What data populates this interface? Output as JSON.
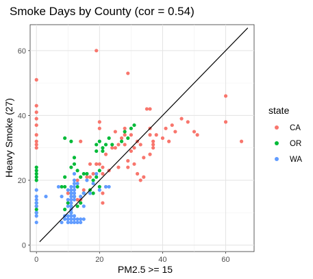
{
  "chart_data": {
    "type": "scatter",
    "title": "Smoke Days by County (cor = 0.54)",
    "xlabel": "PM2.5 >= 15",
    "ylabel": "Heavy Smoke (27)",
    "xlim": [
      -2,
      69
    ],
    "ylim": [
      -2,
      68
    ],
    "x_ticks": [
      0,
      20,
      40,
      60
    ],
    "y_ticks": [
      0,
      20,
      40,
      60
    ],
    "grid": true,
    "legend": {
      "title": "state",
      "position": "right"
    },
    "series": [
      {
        "name": "CA",
        "color": "#F8766D",
        "points": [
          [
            0,
            51
          ],
          [
            0,
            43
          ],
          [
            0,
            41
          ],
          [
            0,
            39
          ],
          [
            0,
            37
          ],
          [
            0,
            34
          ],
          [
            0,
            32
          ],
          [
            0,
            31
          ],
          [
            0,
            30
          ],
          [
            19,
            60
          ],
          [
            29,
            53
          ],
          [
            60,
            46
          ],
          [
            60,
            38
          ],
          [
            65,
            32
          ],
          [
            51,
            34
          ],
          [
            50,
            35
          ],
          [
            48,
            38
          ],
          [
            46,
            39
          ],
          [
            43,
            37
          ],
          [
            44,
            35
          ],
          [
            41,
            36
          ],
          [
            42,
            32
          ],
          [
            40,
            33
          ],
          [
            38,
            34
          ],
          [
            37,
            30
          ],
          [
            37,
            31
          ],
          [
            37,
            32
          ],
          [
            36,
            36
          ],
          [
            35,
            42
          ],
          [
            36,
            42
          ],
          [
            34,
            27
          ],
          [
            33,
            31
          ],
          [
            31,
            30
          ],
          [
            30,
            34
          ],
          [
            30,
            29
          ],
          [
            29,
            26
          ],
          [
            28,
            34
          ],
          [
            29,
            24
          ],
          [
            28,
            31
          ],
          [
            28,
            36
          ],
          [
            27,
            33
          ],
          [
            26,
            31
          ],
          [
            25,
            30
          ],
          [
            24,
            30
          ],
          [
            23,
            23
          ],
          [
            22,
            28
          ],
          [
            21,
            24
          ],
          [
            21,
            22
          ],
          [
            20,
            25
          ],
          [
            19,
            25
          ],
          [
            21,
            16
          ],
          [
            21,
            13
          ],
          [
            20,
            38
          ],
          [
            20,
            36
          ],
          [
            19,
            25
          ],
          [
            17,
            21
          ],
          [
            16,
            21
          ],
          [
            15,
            17
          ],
          [
            14,
            32
          ],
          [
            14,
            14
          ],
          [
            13,
            14
          ],
          [
            12,
            15
          ],
          [
            11,
            13
          ],
          [
            11,
            11
          ],
          [
            10,
            13
          ],
          [
            10,
            16
          ],
          [
            17,
            25
          ],
          [
            18,
            22
          ],
          [
            13,
            20
          ],
          [
            26,
            24
          ],
          [
            31,
            25
          ],
          [
            32,
            22
          ],
          [
            32,
            32
          ],
          [
            33,
            20
          ],
          [
            34,
            21
          ],
          [
            22,
            18
          ],
          [
            25,
            35
          ],
          [
            36,
            34
          ],
          [
            36,
            28
          ]
        ]
      },
      {
        "name": "OR",
        "color": "#00BA38",
        "points": [
          [
            0,
            24
          ],
          [
            0,
            23
          ],
          [
            0,
            22
          ],
          [
            0,
            21
          ],
          [
            0,
            20
          ],
          [
            0,
            13
          ],
          [
            0,
            12
          ],
          [
            0,
            11
          ],
          [
            0,
            10
          ],
          [
            9,
            33
          ],
          [
            9,
            21
          ],
          [
            8,
            18
          ],
          [
            9,
            18
          ],
          [
            9,
            11
          ],
          [
            10,
            13
          ],
          [
            11,
            12
          ],
          [
            11,
            16
          ],
          [
            11,
            10
          ],
          [
            11,
            24
          ],
          [
            11,
            32
          ],
          [
            12,
            27
          ],
          [
            12,
            25
          ],
          [
            12,
            15
          ],
          [
            13,
            23
          ],
          [
            13,
            18
          ],
          [
            14,
            21
          ],
          [
            15,
            22
          ],
          [
            16,
            22
          ],
          [
            17,
            17
          ],
          [
            18,
            20
          ],
          [
            19,
            31
          ],
          [
            19,
            29
          ],
          [
            19,
            21
          ],
          [
            20,
            32
          ],
          [
            20,
            23
          ],
          [
            21,
            30
          ],
          [
            21,
            29
          ],
          [
            22,
            31
          ],
          [
            23,
            33
          ],
          [
            24,
            31
          ],
          [
            27,
            32
          ],
          [
            28,
            35
          ],
          [
            29,
            33
          ],
          [
            30,
            36
          ],
          [
            31,
            37
          ],
          [
            18,
            16
          ],
          [
            20,
            18
          ],
          [
            13,
            12
          ],
          [
            14,
            13
          ],
          [
            15,
            16
          ]
        ]
      },
      {
        "name": "WA",
        "color": "#619CFF",
        "points": [
          [
            0,
            17
          ],
          [
            0,
            15
          ],
          [
            0,
            14
          ],
          [
            0,
            13
          ],
          [
            0,
            12
          ],
          [
            0,
            10
          ],
          [
            0,
            9
          ],
          [
            0,
            7
          ],
          [
            3,
            15
          ],
          [
            7,
            18
          ],
          [
            8,
            15
          ],
          [
            8,
            7
          ],
          [
            9,
            8
          ],
          [
            9,
            9
          ],
          [
            10,
            8
          ],
          [
            10,
            7
          ],
          [
            10,
            9
          ],
          [
            10,
            12
          ],
          [
            10,
            14
          ],
          [
            10,
            17
          ],
          [
            11,
            18
          ],
          [
            11,
            17
          ],
          [
            11,
            16
          ],
          [
            11,
            15
          ],
          [
            11,
            14
          ],
          [
            11,
            13
          ],
          [
            11,
            12
          ],
          [
            11,
            11
          ],
          [
            11,
            10
          ],
          [
            11,
            9
          ],
          [
            11,
            8
          ],
          [
            11,
            7
          ],
          [
            12,
            22
          ],
          [
            12,
            20
          ],
          [
            12,
            19
          ],
          [
            12,
            18
          ],
          [
            12,
            17
          ],
          [
            12,
            16
          ],
          [
            12,
            15
          ],
          [
            12,
            14
          ],
          [
            12,
            9
          ],
          [
            12,
            8
          ],
          [
            12,
            7
          ],
          [
            13,
            19
          ],
          [
            13,
            8
          ],
          [
            13,
            7
          ],
          [
            14,
            15
          ],
          [
            14,
            8
          ],
          [
            14,
            7
          ],
          [
            15,
            16
          ],
          [
            15,
            12
          ],
          [
            15,
            8
          ],
          [
            16,
            20
          ],
          [
            17,
            16
          ],
          [
            18,
            19
          ],
          [
            19,
            22
          ],
          [
            20,
            17
          ],
          [
            22,
            18
          ],
          [
            23,
            18
          ]
        ]
      }
    ],
    "reference_line": {
      "x": [
        1,
        67
      ],
      "y": [
        1,
        67
      ],
      "color": "#000000"
    }
  }
}
